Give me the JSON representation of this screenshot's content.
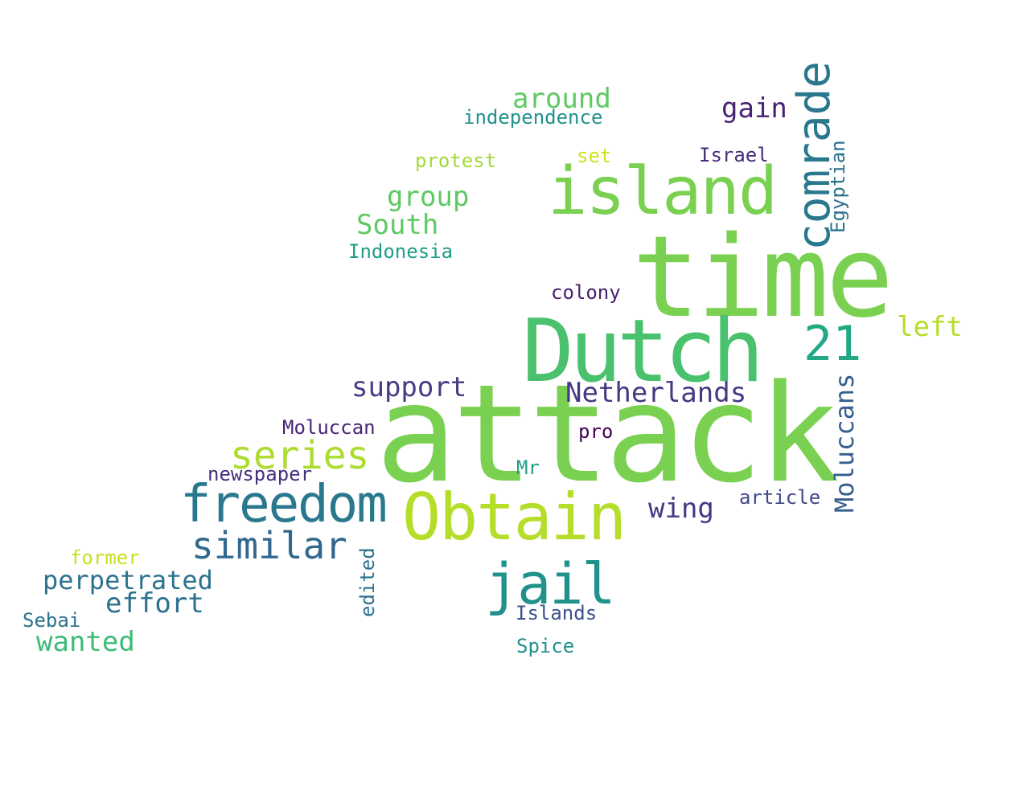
{
  "words": {
    "attack": {
      "text": "attack",
      "color": "#7ad151"
    },
    "time": {
      "text": "time",
      "color": "#7ad151"
    },
    "dutch": {
      "text": "Dutch",
      "color": "#4ac16d"
    },
    "island": {
      "text": "island",
      "color": "#7ad151"
    },
    "obtain": {
      "text": "Obtain",
      "color": "#b5de2b"
    },
    "comrade": {
      "text": "comrade",
      "color": "#2a788e"
    },
    "freedom": {
      "text": "freedom",
      "color": "#2a788e"
    },
    "jail": {
      "text": "jail",
      "color": "#21918c"
    },
    "n21": {
      "text": "21",
      "color": "#22a884"
    },
    "series": {
      "text": "series",
      "color": "#addc30"
    },
    "similar": {
      "text": "similar",
      "color": "#31688e"
    },
    "netherlands": {
      "text": "Netherlands",
      "color": "#443983"
    },
    "moluccans": {
      "text": "Moluccans",
      "color": "#355f8d"
    },
    "support": {
      "text": "support",
      "color": "#433e85"
    },
    "perpetrated": {
      "text": "perpetrated",
      "color": "#2c728e"
    },
    "wanted": {
      "text": "wanted",
      "color": "#3dbc74"
    },
    "effort": {
      "text": "effort",
      "color": "#2c728e"
    },
    "wing": {
      "text": "wing",
      "color": "#443983"
    },
    "around": {
      "text": "around",
      "color": "#5ec962"
    },
    "gain": {
      "text": "gain",
      "color": "#482173"
    },
    "group": {
      "text": "group",
      "color": "#5ec962"
    },
    "south": {
      "text": "South",
      "color": "#5ec962"
    },
    "left": {
      "text": "left",
      "color": "#b5de2b"
    },
    "egyptian": {
      "text": "Egyptian",
      "color": "#2c728e"
    },
    "independence": {
      "text": "independence",
      "color": "#21918c"
    },
    "protest": {
      "text": "protest",
      "color": "#a0da39"
    },
    "set": {
      "text": "set",
      "color": "#d0e11c"
    },
    "israel": {
      "text": "Israel",
      "color": "#472d7b"
    },
    "indonesia": {
      "text": "Indonesia",
      "color": "#1f9e89"
    },
    "colony": {
      "text": "colony",
      "color": "#481f70"
    },
    "moluccan": {
      "text": "Moluccan",
      "color": "#482475"
    },
    "pro": {
      "text": "pro",
      "color": "#440154"
    },
    "newspaper": {
      "text": "newspaper",
      "color": "#46307e"
    },
    "mr": {
      "text": "Mr",
      "color": "#1f9e89"
    },
    "article": {
      "text": "article",
      "color": "#404688"
    },
    "former": {
      "text": "former",
      "color": "#c8e020"
    },
    "edited": {
      "text": "edited",
      "color": "#2c728e"
    },
    "sebai": {
      "text": "Sebai",
      "color": "#2c728e"
    },
    "islands": {
      "text": "Islands",
      "color": "#3b528b"
    },
    "spice": {
      "text": "Spice",
      "color": "#21918c"
    }
  }
}
